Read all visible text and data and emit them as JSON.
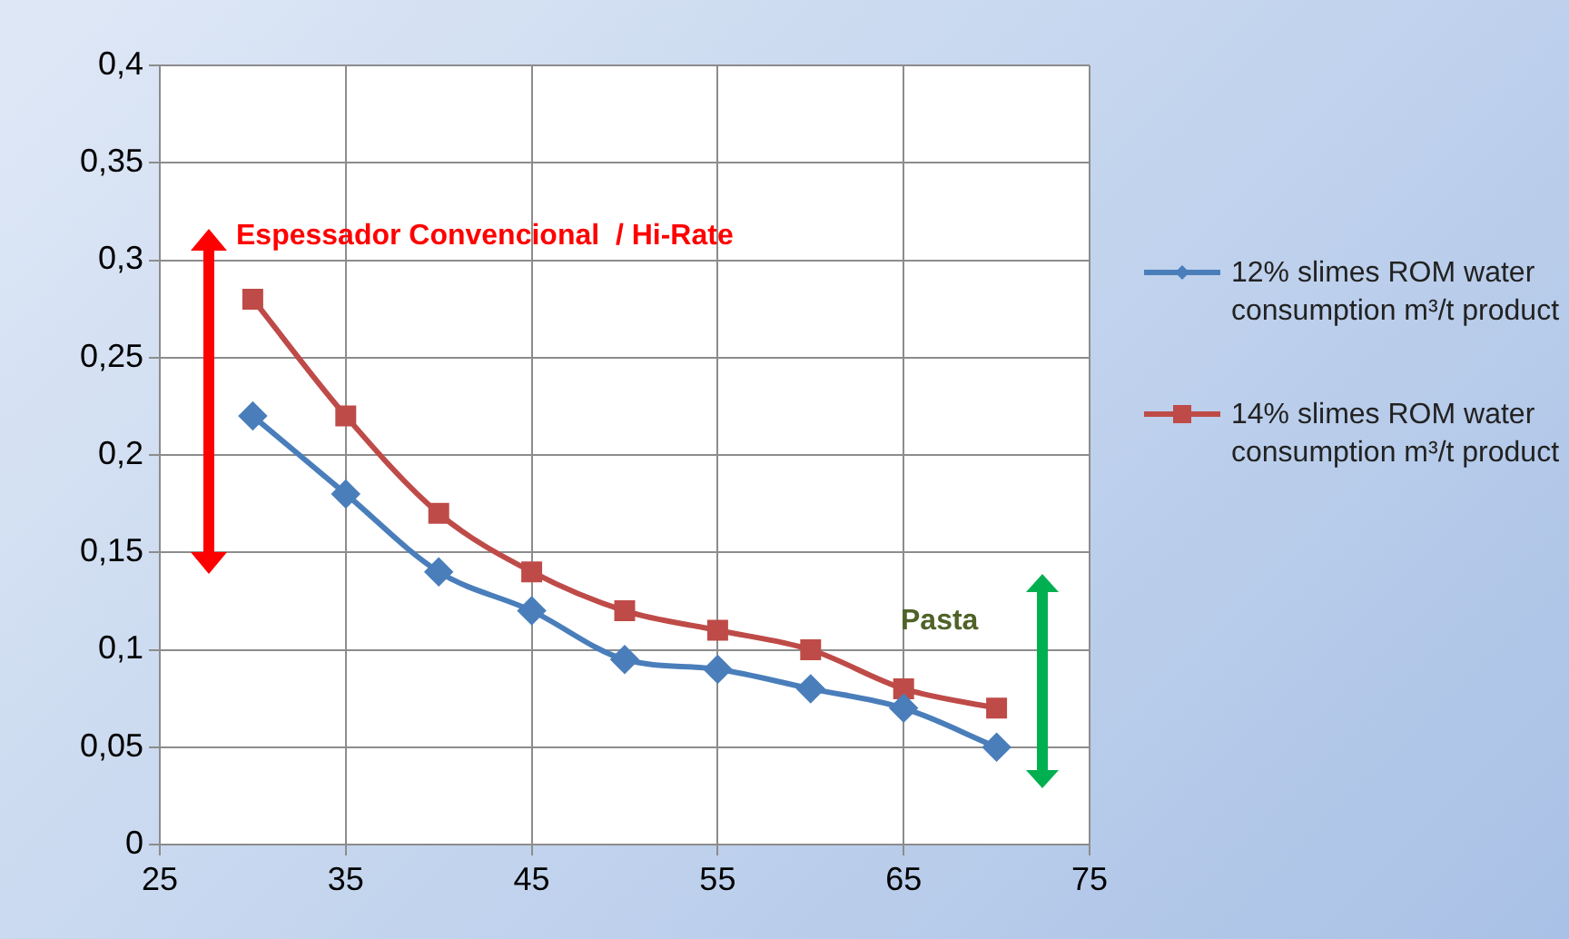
{
  "chart_data": {
    "type": "line",
    "x": [
      30,
      35,
      40,
      45,
      50,
      55,
      60,
      65,
      70
    ],
    "series": [
      {
        "name": "12% slimes ROM water consumption m³/t product",
        "color": "#4a7ebb",
        "marker": "diamond",
        "values": [
          0.22,
          0.18,
          0.14,
          0.12,
          0.095,
          0.09,
          0.08,
          0.07,
          0.05
        ]
      },
      {
        "name": "14% slimes ROM water consumption m³/t product",
        "color": "#be4b48",
        "marker": "square",
        "values": [
          0.28,
          0.22,
          0.17,
          0.14,
          0.12,
          0.11,
          0.1,
          0.08,
          0.07
        ]
      }
    ],
    "xlim": [
      25,
      75
    ],
    "xticks": [
      25,
      35,
      45,
      55,
      65,
      75
    ],
    "ylim": [
      0,
      0.4
    ],
    "yticks": [
      {
        "value": 0,
        "label": "0"
      },
      {
        "value": 0.05,
        "label": "0,05"
      },
      {
        "value": 0.1,
        "label": "0,1"
      },
      {
        "value": 0.15,
        "label": "0,15"
      },
      {
        "value": 0.2,
        "label": "0,2"
      },
      {
        "value": 0.25,
        "label": "0,25"
      },
      {
        "value": 0.3,
        "label": "0,3"
      },
      {
        "value": 0.35,
        "label": "0,35"
      },
      {
        "value": 0.4,
        "label": "0,4"
      }
    ],
    "annotations": [
      "Espessador Convencional  / Hi-Rate",
      "Pasta"
    ],
    "grid": true,
    "legend": "right",
    "line_style": "solid"
  }
}
